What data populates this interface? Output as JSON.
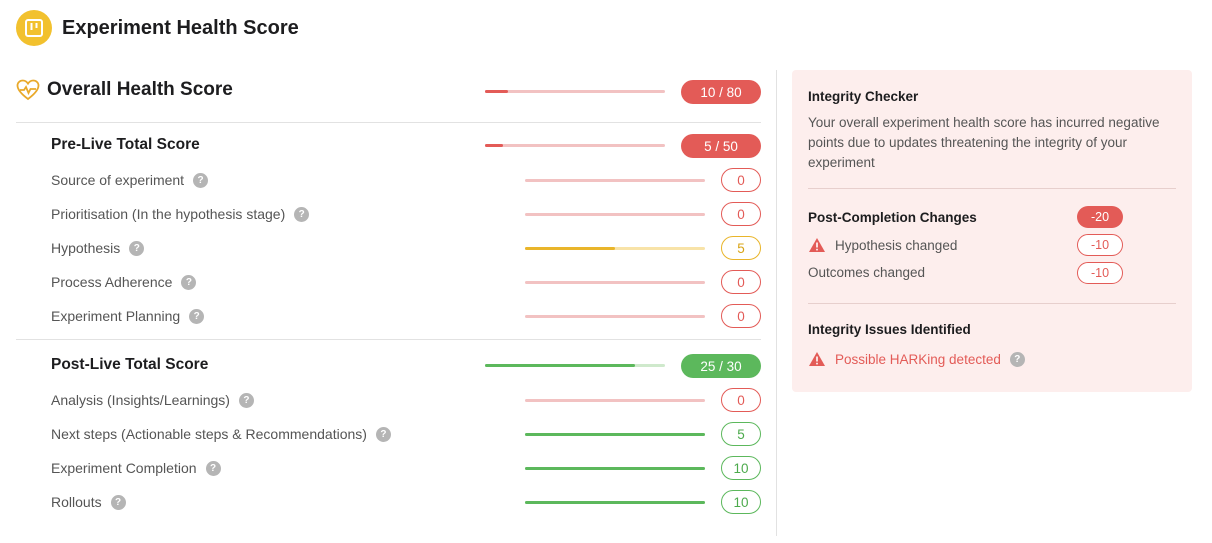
{
  "header": {
    "title": "Experiment Health Score",
    "logo_icon": "board-icon",
    "logo_color": "#f2c12e"
  },
  "overall": {
    "title": "Overall Health Score",
    "icon": "heart-pulse-icon",
    "score_label": "10 / 80",
    "fraction": 0.125
  },
  "pre_live": {
    "title": "Pre-Live Total Score",
    "score_label": "5 / 50",
    "fraction": 0.1,
    "items": [
      {
        "label": "Source of experiment",
        "value": "0",
        "fraction": 0,
        "status": "red"
      },
      {
        "label": "Prioritisation (In the hypothesis stage)",
        "value": "0",
        "fraction": 0,
        "status": "red"
      },
      {
        "label": "Hypothesis",
        "value": "5",
        "fraction": 0.5,
        "status": "yellow"
      },
      {
        "label": "Process Adherence",
        "value": "0",
        "fraction": 0,
        "status": "red"
      },
      {
        "label": "Experiment Planning",
        "value": "0",
        "fraction": 0,
        "status": "red"
      }
    ]
  },
  "post_live": {
    "title": "Post-Live Total Score",
    "score_label": "25 / 30",
    "fraction": 0.833,
    "items": [
      {
        "label": "Analysis (Insights/Learnings)",
        "value": "0",
        "fraction": 0,
        "status": "red"
      },
      {
        "label": "Next steps (Actionable steps & Recommendations)",
        "value": "5",
        "fraction": 1,
        "status": "green"
      },
      {
        "label": "Experiment Completion",
        "value": "10",
        "fraction": 1,
        "status": "green"
      },
      {
        "label": "Rollouts",
        "value": "10",
        "fraction": 1,
        "status": "green"
      }
    ]
  },
  "integrity": {
    "title": "Integrity Checker",
    "description": "Your overall experiment health score has incurred negative points due to updates threatening the integrity of your experiment",
    "post_completion": {
      "title": "Post-Completion Changes",
      "total": "-20",
      "rows": [
        {
          "label": "Hypothesis changed",
          "value": "-10",
          "icon": "warning-icon"
        },
        {
          "label": "Outcomes changed",
          "value": "-10"
        }
      ]
    },
    "issues": {
      "title": "Integrity Issues Identified",
      "items": [
        {
          "label": "Possible HARKing detected",
          "icon": "warning-icon"
        }
      ]
    }
  },
  "colors": {
    "red": "#e35b57",
    "green": "#5cb85c",
    "yellow": "#e9b52a",
    "panel_bg": "#fdeeed"
  }
}
